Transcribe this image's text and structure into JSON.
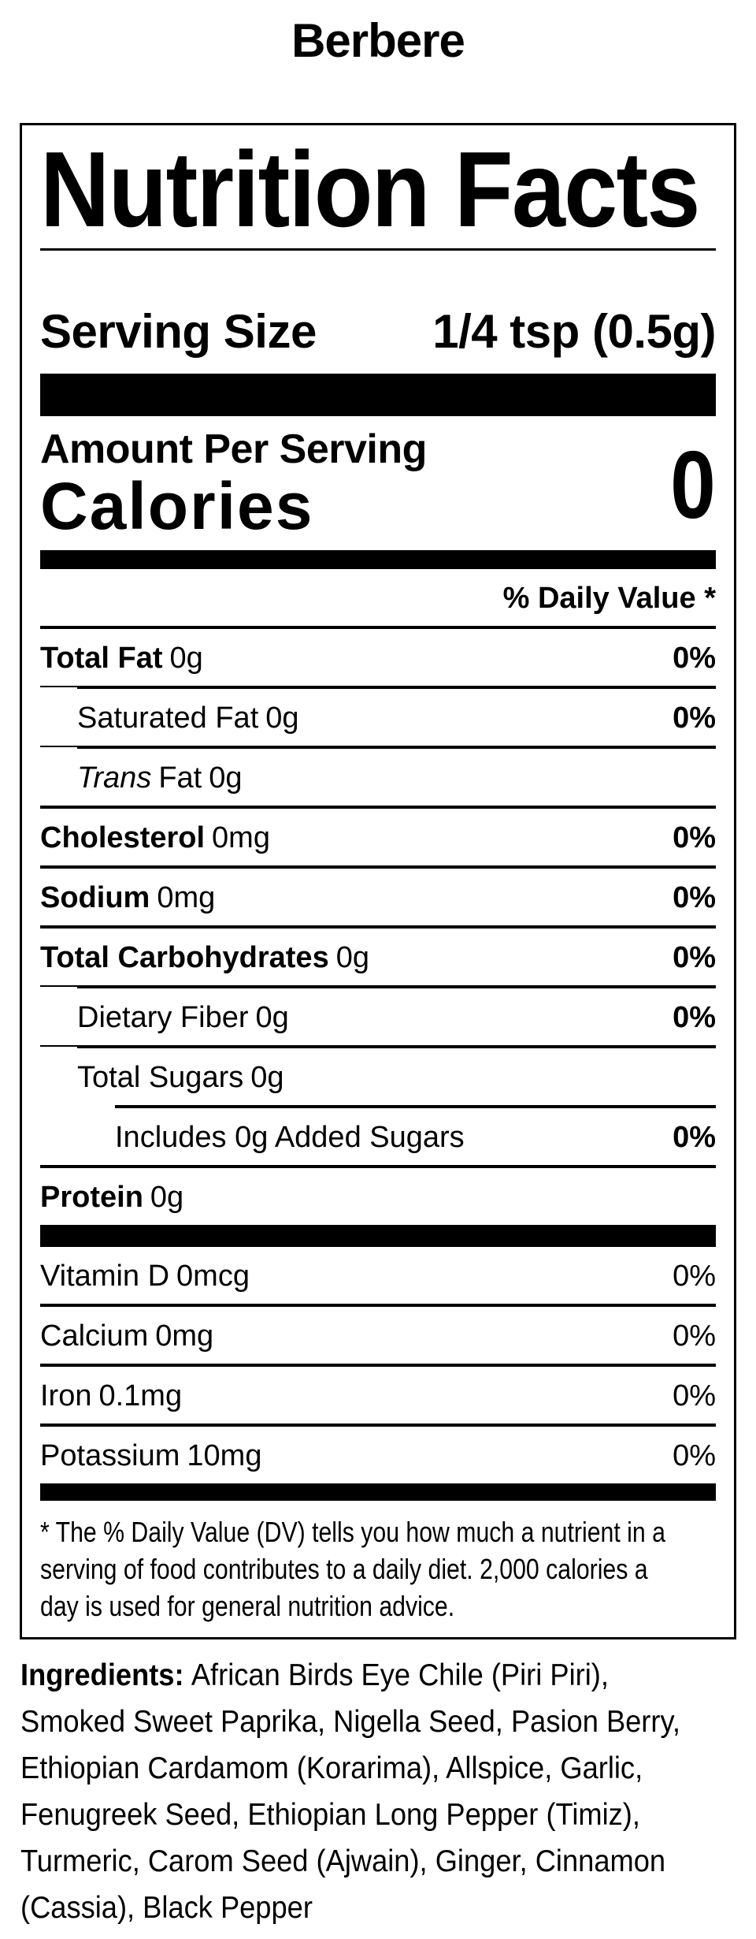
{
  "product_title": "Berbere",
  "colors": {
    "text": "#000000",
    "background": "#ffffff"
  },
  "nutrition_label": {
    "title": "Nutrition Facts",
    "serving_size_label": "Serving Size",
    "serving_size_value": "1/4 tsp (0.5g)",
    "amount_per_serving_label": "Amount Per Serving",
    "calories_label": "Calories",
    "calories_value": "0",
    "daily_value_header": "% Daily Value *",
    "rows": [
      {
        "name": "Total Fat",
        "amount": "0g",
        "daily_value": "0%"
      },
      {
        "name": "Saturated Fat",
        "amount": "0g",
        "daily_value": "0%"
      },
      {
        "name_italic": "Trans",
        "name": "Fat",
        "amount": "0g",
        "daily_value": ""
      },
      {
        "name": "Cholesterol",
        "amount": "0mg",
        "daily_value": "0%"
      },
      {
        "name": "Sodium",
        "amount": "0mg",
        "daily_value": "0%"
      },
      {
        "name": "Total Carbohydrates",
        "amount": "0g",
        "daily_value": "0%"
      },
      {
        "name": "Dietary Fiber",
        "amount": "0g",
        "daily_value": "0%"
      },
      {
        "name": "Total Sugars",
        "amount": "0g",
        "daily_value": ""
      },
      {
        "name": "Includes 0g Added Sugars",
        "amount": "",
        "daily_value": "0%"
      },
      {
        "name": "Protein",
        "amount": "0g",
        "daily_value": ""
      }
    ],
    "micronutrients": [
      {
        "name": "Vitamin D",
        "amount": "0mcg",
        "daily_value": "0%"
      },
      {
        "name": "Calcium",
        "amount": "0mg",
        "daily_value": "0%"
      },
      {
        "name": "Iron",
        "amount": "0.1mg",
        "daily_value": "0%"
      },
      {
        "name": "Potassium",
        "amount": "10mg",
        "daily_value": "0%"
      }
    ],
    "footnote_lines": [
      "* The % Daily Value (DV) tells you how much a nutrient in a",
      "serving of food contributes to a daily diet. 2,000 calories a",
      "day is used for general nutrition advice."
    ]
  },
  "ingredients": {
    "label": "Ingredients:",
    "lines": [
      "African Birds Eye Chile (Piri Piri),",
      "Smoked Sweet Paprika, Nigella Seed, Pasion Berry,",
      "Ethiopian Cardamom (Korarima), Allspice, Garlic,",
      "Fenugreek Seed, Ethiopian Long Pepper (Timiz),",
      "Turmeric, Carom Seed (Ajwain), Ginger, Cinnamon",
      "(Cassia), Black Pepper"
    ]
  }
}
